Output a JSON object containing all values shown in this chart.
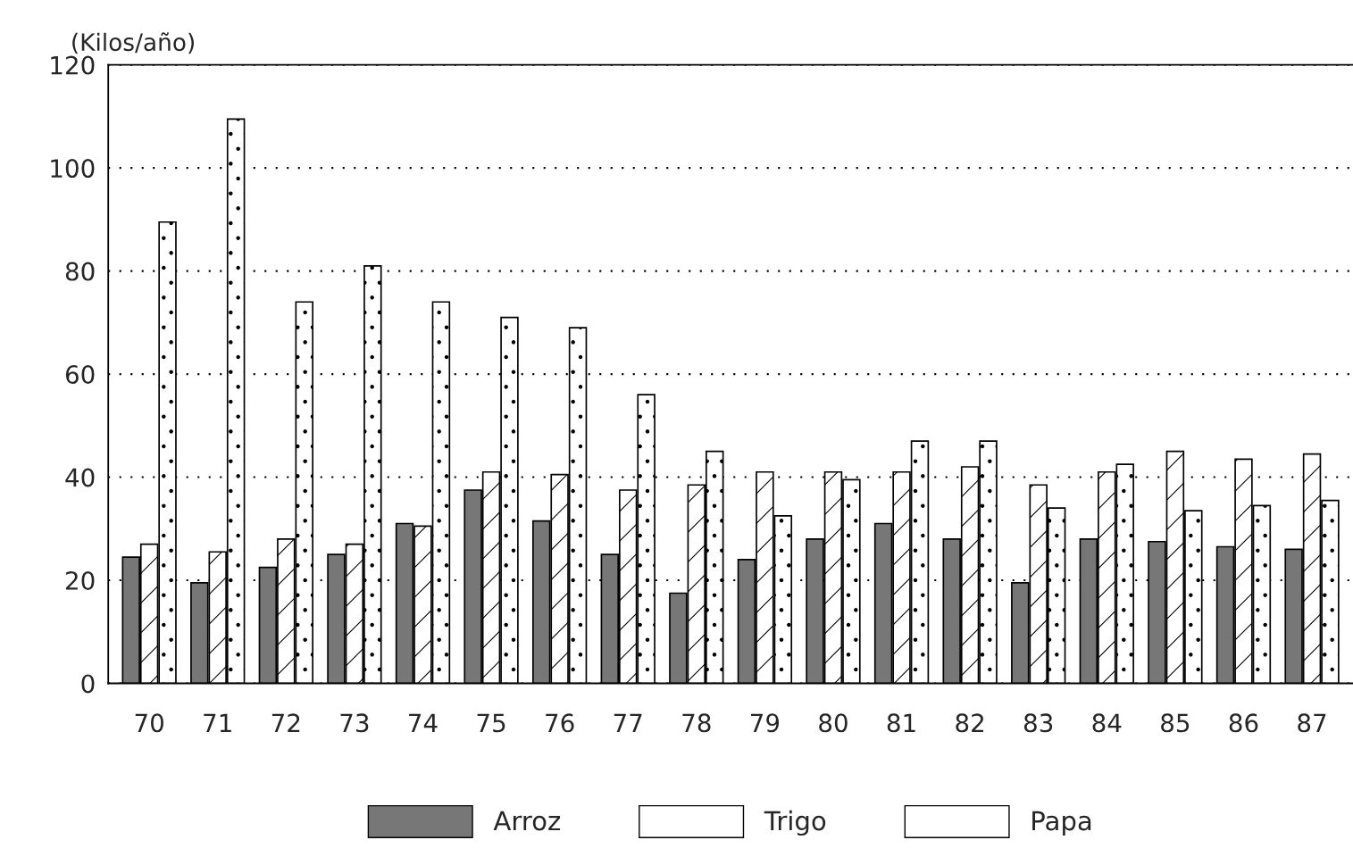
{
  "chart_data": {
    "type": "bar",
    "ylabel": "(Kilos/año)",
    "categories": [
      "70",
      "71",
      "72",
      "73",
      "74",
      "75",
      "76",
      "77",
      "78",
      "79",
      "80",
      "81",
      "82",
      "83",
      "84",
      "85",
      "86",
      "87"
    ],
    "series": [
      {
        "name": "Arroz",
        "color": "#777777",
        "values": [
          24.5,
          19.5,
          22.5,
          25,
          31,
          37.5,
          31.5,
          25,
          17.5,
          24,
          28,
          31,
          28,
          19.5,
          28,
          27.5,
          26.5,
          26
        ]
      },
      {
        "name": "Trigo",
        "color": "#ffffff",
        "values": [
          27,
          25.5,
          28,
          27,
          30.5,
          41,
          40.5,
          37.5,
          38.5,
          41,
          41,
          41,
          42,
          38.5,
          41,
          45,
          43.5,
          44.5
        ]
      },
      {
        "name": "Papa",
        "color": "#ffffff",
        "values": [
          89.5,
          109.5,
          74,
          81,
          74,
          71,
          69,
          56,
          45,
          32.5,
          39.5,
          47,
          47,
          34,
          42.5,
          33.5,
          34.5,
          35.5
        ]
      }
    ],
    "ylim": [
      0,
      120
    ],
    "yticks": [
      0,
      20,
      40,
      60,
      80,
      100,
      120
    ],
    "grid": "y",
    "legend": "bottom"
  }
}
